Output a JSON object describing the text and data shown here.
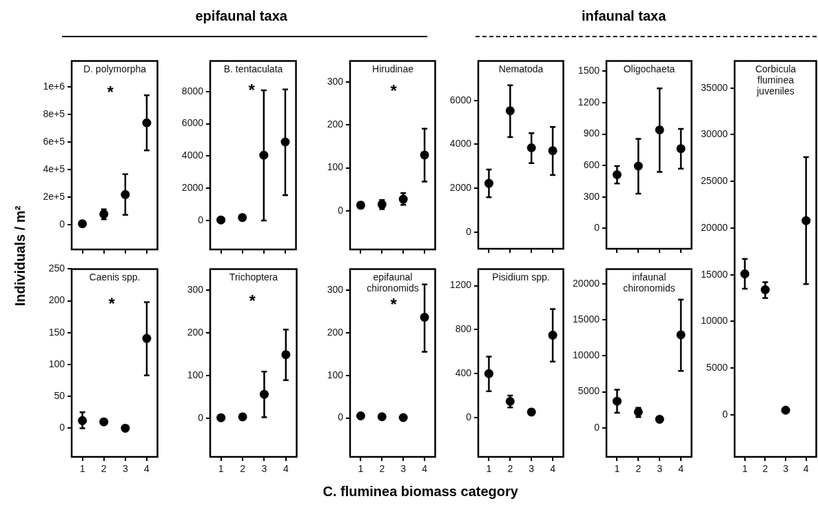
{
  "chart_data": [
    {
      "type": "scatter",
      "title": "D. polymorpha",
      "ylabel": "Individuals / m²",
      "annotations": [
        "epifaunal taxa",
        "*"
      ],
      "categories": [
        "1",
        "2",
        "3",
        "4"
      ],
      "values": [
        7000,
        77000,
        219000,
        740000
      ],
      "errors": [
        null,
        [
          39000,
          112000
        ],
        [
          72000,
          367000
        ],
        [
          540000,
          940000
        ]
      ],
      "color": "#000000",
      "marker": "circle",
      "ylim": [
        -180000,
        1190000
      ],
      "yticks": [
        0,
        {
          "value": 200000,
          "label": "2e+5"
        },
        {
          "value": 400000,
          "label": "4e+5"
        },
        {
          "value": 600000,
          "label": "6e+5"
        },
        {
          "value": 800000,
          "label": "8e+5"
        },
        {
          "value": 1000000,
          "label": "1e+6"
        }
      ],
      "tick_labels": "y"
    },
    {
      "type": "scatter",
      "title": "B. tentaculata",
      "annotations": [
        "*"
      ],
      "categories": [
        "1",
        "2",
        "3",
        "4"
      ],
      "values": [
        30,
        180,
        4050,
        4870
      ],
      "errors": [
        null,
        null,
        [
          0,
          8080
        ],
        [
          1570,
          8130
        ]
      ],
      "color": "#000000",
      "marker": "circle",
      "ylim": [
        -1800,
        9900
      ],
      "yticks": [
        0,
        2000,
        4000,
        6000,
        8000
      ],
      "tick_labels": "y"
    },
    {
      "type": "scatter",
      "title": "Hirudinae",
      "annotations": [
        "*"
      ],
      "categories": [
        "1",
        "2",
        "3",
        "4"
      ],
      "values": [
        13,
        15,
        27,
        130
      ],
      "errors": [
        [
          6,
          20
        ],
        [
          4,
          25
        ],
        [
          14,
          41
        ],
        [
          68,
          191
        ]
      ],
      "color": "#000000",
      "marker": "circle",
      "ylim": [
        -90,
        349
      ],
      "yticks": [
        0,
        100,
        200,
        300
      ],
      "tick_labels": "y"
    },
    {
      "type": "scatter",
      "title": "Nematoda",
      "annotations": [
        "infaunal taxa"
      ],
      "categories": [
        "1",
        "2",
        "3",
        "4"
      ],
      "values": [
        2220,
        5530,
        3840,
        3710
      ],
      "errors": [
        [
          1590,
          2850
        ],
        [
          4330,
          6690
        ],
        [
          3140,
          4510
        ],
        [
          2600,
          4790
        ]
      ],
      "color": "#000000",
      "marker": "circle",
      "ylim": [
        -760,
        7800
      ],
      "yticks": [
        0,
        2000,
        4000,
        6000
      ],
      "tick_labels": "y"
    },
    {
      "type": "scatter",
      "title": "Oligochaeta",
      "categories": [
        "1",
        "2",
        "3",
        "4"
      ],
      "values": [
        512,
        594,
        940,
        761
      ],
      "errors": [
        [
          428,
          594
        ],
        [
          331,
          855
        ],
        [
          539,
          1336
        ],
        [
          570,
          949
        ]
      ],
      "color": "#000000",
      "marker": "circle",
      "ylim": [
        -196,
        1599
      ],
      "yticks": [
        0,
        300,
        600,
        900,
        1200,
        1500
      ],
      "tick_labels": "y"
    },
    {
      "type": "scatter",
      "title": "Corbicula fluminea juveniles",
      "categories": [
        "1",
        "2",
        "3",
        "4"
      ],
      "values": [
        15100,
        13400,
        500,
        20800
      ],
      "errors": [
        [
          13500,
          16700
        ],
        [
          12500,
          14200
        ],
        null,
        [
          14000,
          27600
        ]
      ],
      "color": "#000000",
      "marker": "circle",
      "ylim": [
        -4500,
        37900
      ],
      "yticks": [
        0,
        5000,
        10000,
        15000,
        20000,
        25000,
        30000,
        35000
      ]
    },
    {
      "type": "scatter",
      "title": "Caenis spp.",
      "annotations": [
        "*"
      ],
      "categories": [
        "1",
        "2",
        "3",
        "4"
      ],
      "values": [
        12,
        10,
        0,
        141
      ],
      "errors": [
        [
          0,
          25
        ],
        null,
        null,
        [
          83,
          198
        ]
      ],
      "color": "#000000",
      "marker": "circle",
      "ylim": [
        -45,
        250
      ],
      "yticks": [
        0,
        50,
        100,
        150,
        200,
        250
      ]
    },
    {
      "type": "scatter",
      "title": "Trichoptera",
      "annotations": [
        "*"
      ],
      "categories": [
        "1",
        "2",
        "3",
        "4"
      ],
      "values": [
        1,
        3,
        56,
        149
      ],
      "errors": [
        null,
        null,
        [
          2,
          109
        ],
        [
          89,
          208
        ]
      ],
      "color": "#000000",
      "marker": "circle",
      "ylim": [
        -91,
        350
      ],
      "yticks": [
        0,
        100,
        200,
        300
      ]
    },
    {
      "type": "scatter",
      "title": "epifaunal chironomids",
      "xlabel": "C. fluminea biomass category",
      "annotations": [
        "*"
      ],
      "categories": [
        "1",
        "2",
        "3",
        "4"
      ],
      "values": [
        5,
        3,
        1,
        236
      ],
      "errors": [
        null,
        null,
        null,
        [
          155,
          313
        ]
      ],
      "color": "#000000",
      "marker": "circle",
      "ylim": [
        -91,
        349
      ],
      "yticks": [
        0,
        100,
        200,
        300
      ]
    },
    {
      "type": "scatter",
      "title": "Pisidium spp.",
      "categories": [
        "1",
        "2",
        "3",
        "4"
      ],
      "values": [
        400,
        147,
        50,
        750
      ],
      "errors": [
        [
          239,
          555
        ],
        [
          92,
          200
        ],
        null,
        [
          509,
          987
        ]
      ],
      "color": "#000000",
      "marker": "circle",
      "ylim": [
        -358,
        1352
      ],
      "yticks": [
        0,
        400,
        800,
        1200
      ]
    },
    {
      "type": "scatter",
      "title": "infaunal chironomids",
      "categories": [
        "1",
        "2",
        "3",
        "4"
      ],
      "values": [
        3700,
        2200,
        1200,
        12900
      ],
      "errors": [
        [
          2100,
          5300
        ],
        [
          1500,
          2800
        ],
        null,
        [
          7900,
          17800
        ]
      ],
      "color": "#000000",
      "marker": "circle",
      "ylim": [
        -4020,
        22030
      ],
      "yticks": [
        0,
        5000,
        10000,
        15000,
        20000
      ]
    }
  ]
}
